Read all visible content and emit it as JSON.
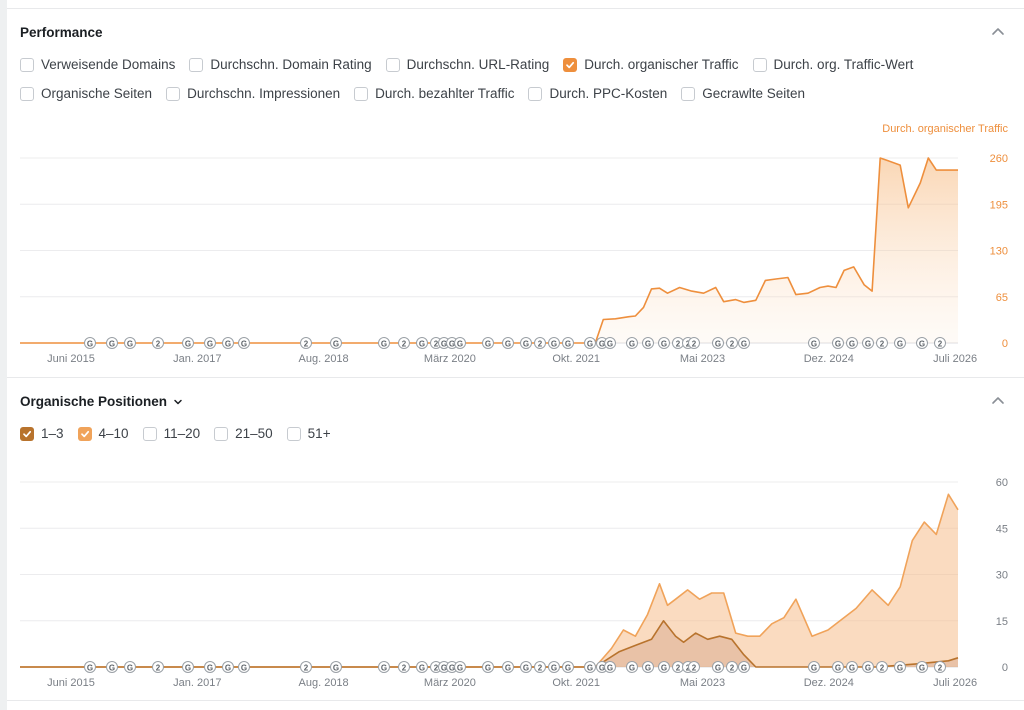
{
  "performance": {
    "title": "Performance",
    "metrics": [
      {
        "label": "Verweisende Domains",
        "checked": false
      },
      {
        "label": "Durchschn. Domain Rating",
        "checked": false
      },
      {
        "label": "Durchschn. URL-Rating",
        "checked": false
      },
      {
        "label": "Durch. organischer Traffic",
        "checked": true
      },
      {
        "label": "Durch. org. Traffic-Wert",
        "checked": false
      },
      {
        "label": "Organische Seiten",
        "checked": false
      },
      {
        "label": "Durchschn. Impressionen",
        "checked": false
      },
      {
        "label": "Durch. bezahlter Traffic",
        "checked": false
      },
      {
        "label": "Durch. PPC-Kosten",
        "checked": false
      },
      {
        "label": "Gecrawlte Seiten",
        "checked": false
      }
    ]
  },
  "positions": {
    "title": "Organische Positionen",
    "ranges": [
      {
        "label": "1–3",
        "checked": true,
        "color": "#b8732d"
      },
      {
        "label": "4–10",
        "checked": true,
        "color": "#f0a35a"
      },
      {
        "label": "11–20",
        "checked": false
      },
      {
        "label": "21–50",
        "checked": false
      },
      {
        "label": "51+",
        "checked": false
      }
    ]
  },
  "colors": {
    "accent": "#ee8f3d",
    "dark_accent": "#b8732d",
    "grid": "#ececee",
    "axis_text": "#7a7f86"
  },
  "icons": {
    "collapse": "chevron-up-icon",
    "dropdown": "chevron-down-icon",
    "check": "check-icon"
  },
  "chart_data": [
    {
      "type": "area",
      "series": [
        {
          "name": "Durch. organischer Traffic",
          "x": [
            2015.33,
            2022.5,
            2022.6,
            2022.75,
            2022.92,
            2023.0,
            2023.1,
            2023.2,
            2023.3,
            2023.4,
            2023.55,
            2023.7,
            2023.85,
            2024.0,
            2024.1,
            2024.25,
            2024.35,
            2024.5,
            2024.62,
            2024.75,
            2024.9,
            2025.0,
            2025.15,
            2025.3,
            2025.4,
            2025.5,
            2025.6,
            2025.72,
            2025.85,
            2025.95,
            2026.05,
            2026.15,
            2026.3,
            2026.4,
            2026.55,
            2026.65,
            2026.75,
            2026.9,
            2027.02
          ],
          "values": [
            0,
            0,
            33,
            34,
            37,
            38,
            50,
            76,
            77,
            70,
            78,
            73,
            70,
            78,
            58,
            61,
            57,
            60,
            88,
            90,
            92,
            68,
            70,
            78,
            80,
            78,
            102,
            107,
            82,
            73,
            260,
            256,
            250,
            190,
            225,
            260,
            243,
            243,
            243
          ]
        }
      ],
      "legend": "top-right",
      "xticks": [
        "Juni 2015",
        "Jan. 2017",
        "Aug. 2018",
        "März 2020",
        "Okt. 2021",
        "Mai 2023",
        "Dez. 2024",
        "Juli 2026"
      ],
      "yticks": [
        "0",
        "65",
        "130",
        "195",
        "260"
      ],
      "ylim": [
        0,
        260
      ]
    },
    {
      "type": "area",
      "series": [
        {
          "name": "4–10",
          "x": [
            2015.33,
            2022.5,
            2022.7,
            2022.85,
            2023.0,
            2023.15,
            2023.3,
            2023.4,
            2023.5,
            2023.65,
            2023.8,
            2023.95,
            2024.1,
            2024.25,
            2024.4,
            2024.55,
            2024.7,
            2024.85,
            2025.0,
            2025.2,
            2025.4,
            2025.55,
            2025.75,
            2025.95,
            2026.15,
            2026.3,
            2026.45,
            2026.6,
            2026.75,
            2026.9,
            2027.02
          ],
          "values": [
            0,
            0,
            6,
            12,
            10,
            17,
            27,
            20,
            22,
            25,
            22,
            24,
            24,
            11,
            10,
            10,
            14,
            16,
            22,
            10,
            12,
            15,
            19,
            25,
            20,
            26,
            41,
            47,
            43,
            56,
            51
          ]
        },
        {
          "name": "1–3",
          "x": [
            2015.33,
            2022.5,
            2022.8,
            2023.0,
            2023.2,
            2023.35,
            2023.5,
            2023.6,
            2023.75,
            2023.9,
            2024.05,
            2024.2,
            2024.35,
            2024.5,
            2025.5,
            2026.0,
            2026.5,
            2026.9,
            2027.02
          ],
          "values": [
            0,
            0,
            5,
            7,
            9,
            15,
            10,
            8,
            11,
            9,
            10,
            9,
            4,
            0,
            0,
            0,
            1,
            2,
            3
          ]
        }
      ],
      "xticks": [
        "Juni 2015",
        "Jan. 2017",
        "Aug. 2018",
        "März 2020",
        "Okt. 2021",
        "Mai 2023",
        "Dez. 2024",
        "Juli 2026"
      ],
      "yticks": [
        "0",
        "15",
        "30",
        "45",
        "60"
      ],
      "ylim": [
        0,
        60
      ]
    }
  ],
  "annotation_markers": [
    "G",
    "G",
    "G",
    "2",
    "G",
    "G",
    "G",
    "G",
    "2",
    "G",
    "G",
    "2",
    "G",
    "2",
    "G",
    "G",
    "G",
    "G",
    "G",
    "G",
    "2",
    "G",
    "G",
    "G",
    "G",
    "G",
    "G",
    "G",
    "G",
    "2",
    "2",
    "2",
    "G",
    "2",
    "G",
    "G",
    "G",
    "G",
    "G",
    "2",
    "G",
    "G",
    "2",
    "G",
    "2",
    "G",
    "G",
    "G",
    "G",
    "2",
    "G",
    "G"
  ]
}
